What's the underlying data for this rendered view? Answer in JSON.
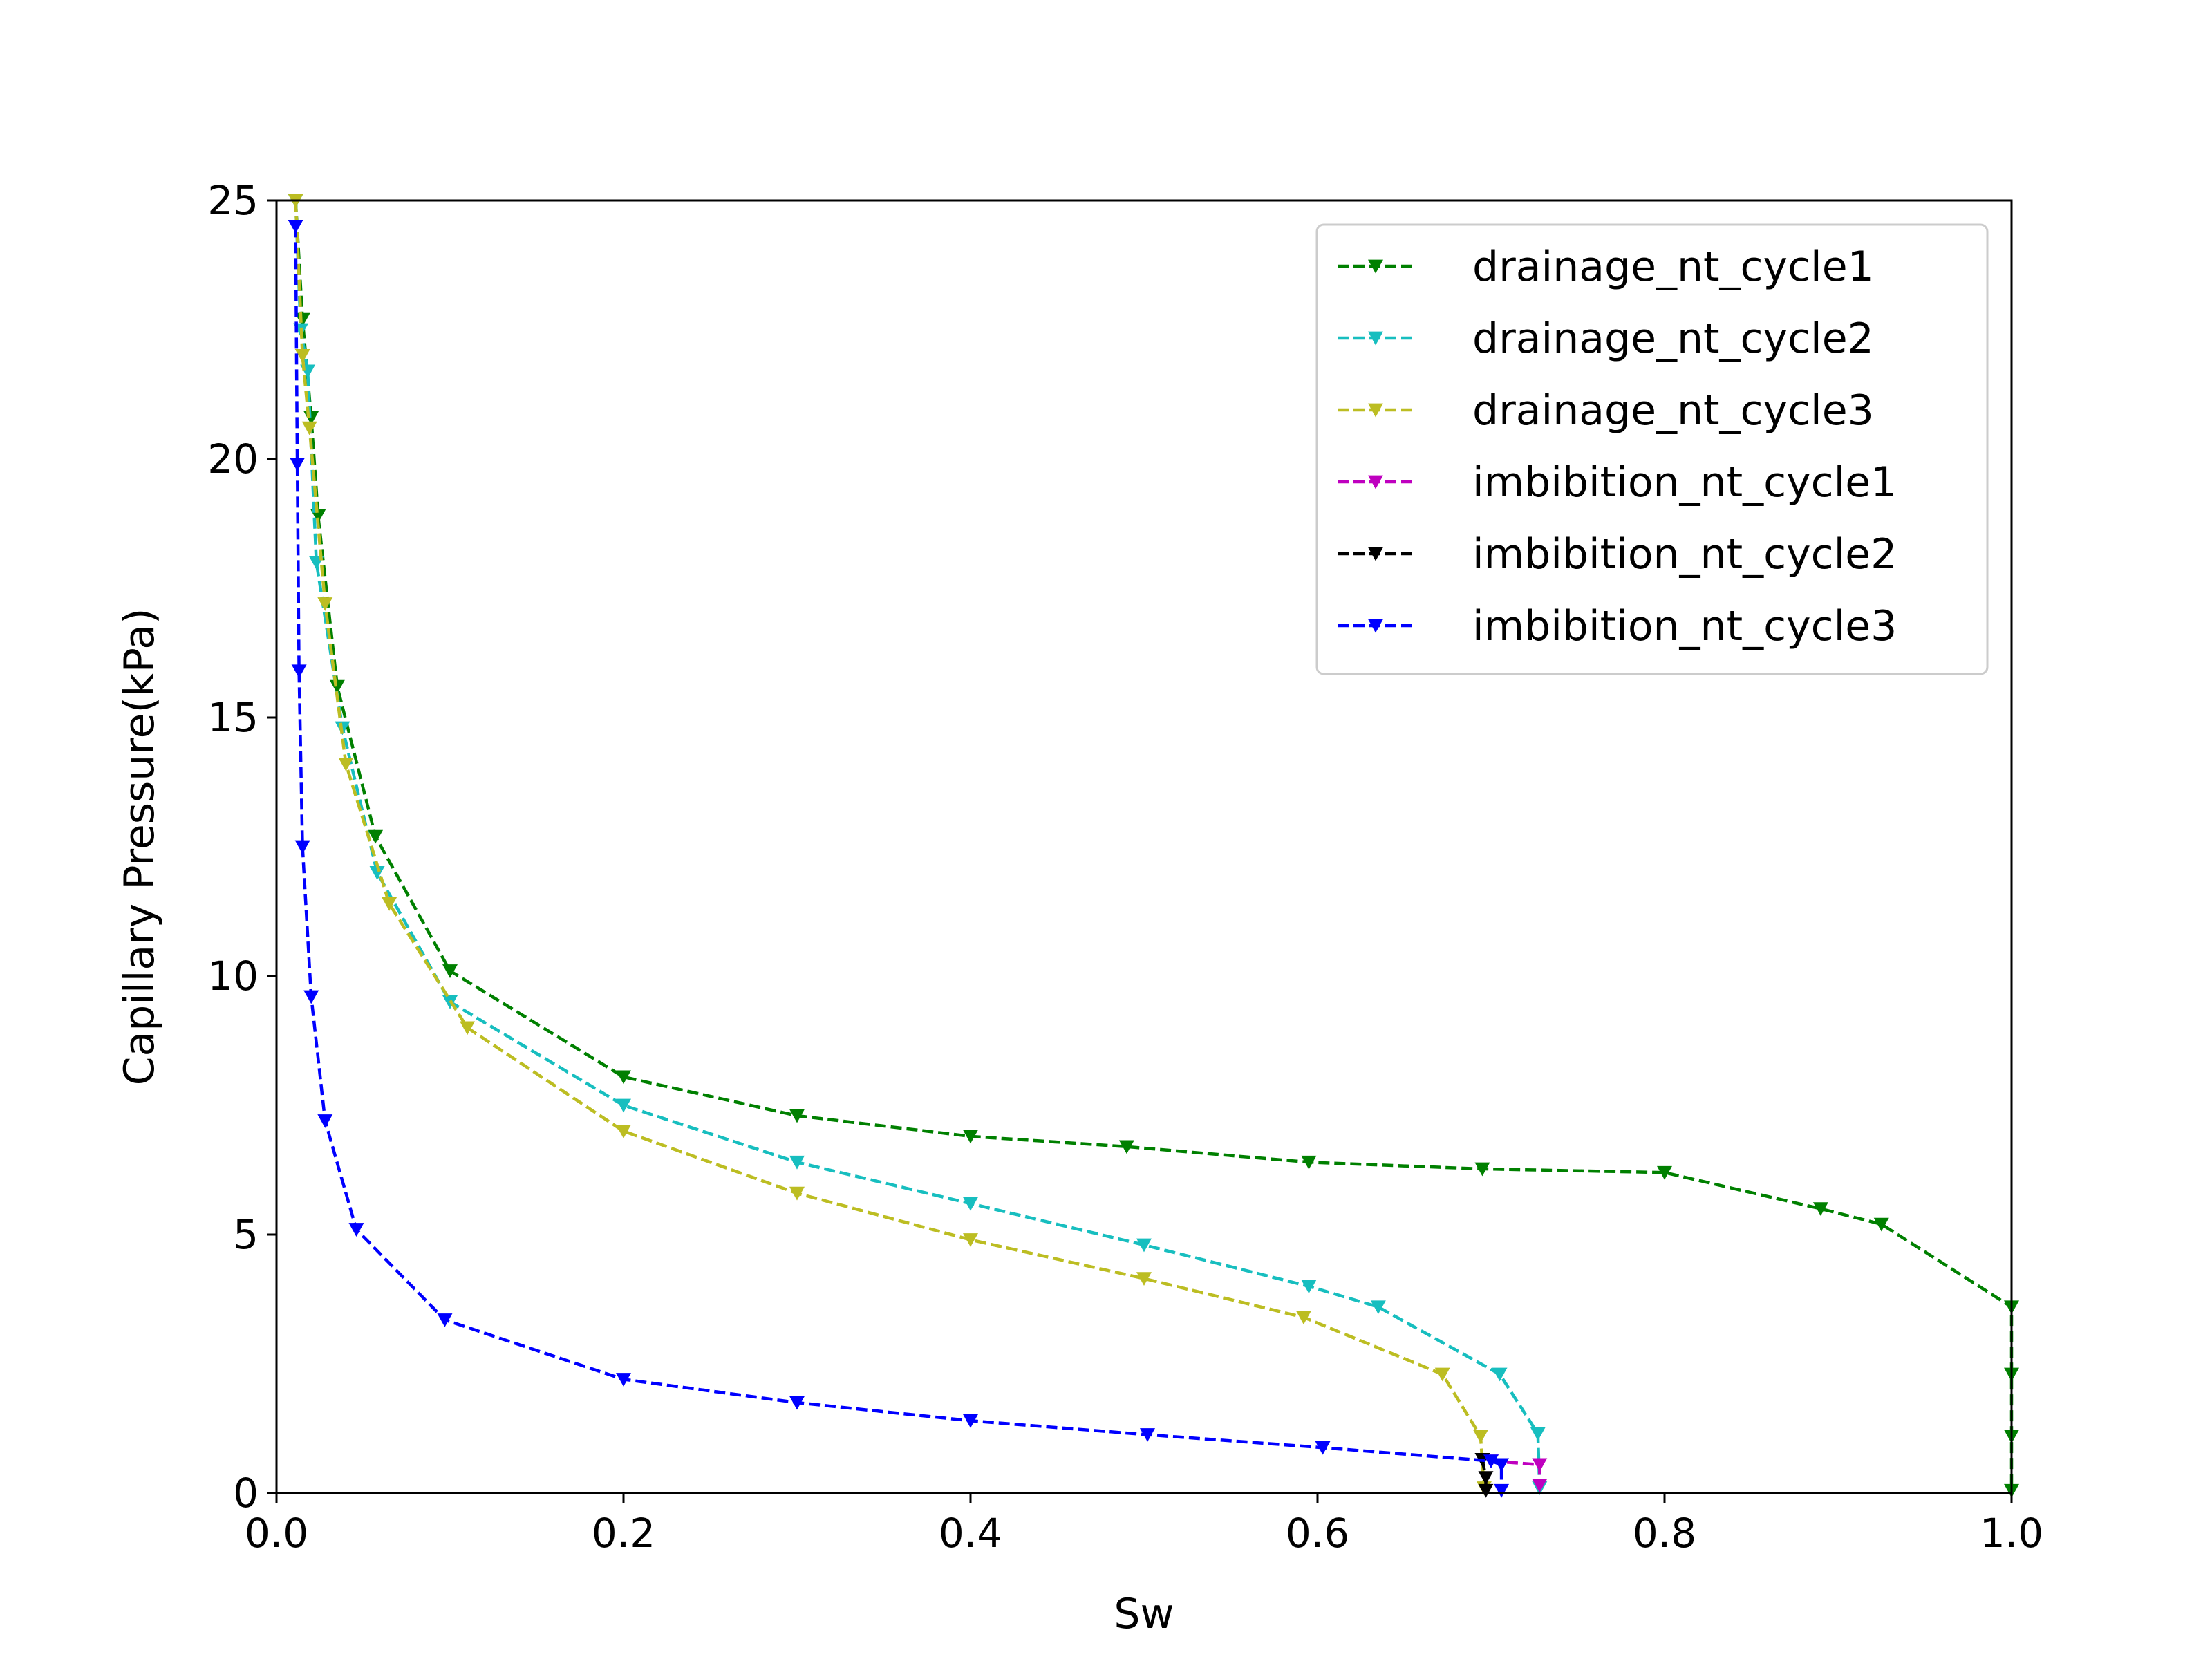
{
  "chart_data": {
    "type": "line",
    "xlabel": "Sw",
    "ylabel": "Capillary Pressure(kPa)",
    "xlim": [
      0.0,
      1.0
    ],
    "ylim": [
      0,
      25
    ],
    "xticks": [
      0.0,
      0.2,
      0.4,
      0.6,
      0.8,
      1.0
    ],
    "xtick_labels": [
      "0.0",
      "0.2",
      "0.4",
      "0.6",
      "0.8",
      "1.0"
    ],
    "yticks": [
      0,
      5,
      10,
      15,
      20,
      25
    ],
    "ytick_labels": [
      "0",
      "5",
      "10",
      "15",
      "20",
      "25"
    ],
    "grid": false,
    "legend_position": "top-right",
    "series": [
      {
        "name": "drainage_nt_cycle1",
        "color": "#008000",
        "marker": "triangle-down",
        "line_style": "dashed",
        "points": [
          [
            0.011,
            25.0
          ],
          [
            0.015,
            22.7
          ],
          [
            0.02,
            20.8
          ],
          [
            0.024,
            18.9
          ],
          [
            0.035,
            15.6
          ],
          [
            0.057,
            12.7
          ],
          [
            0.1,
            10.1
          ],
          [
            0.2,
            8.05
          ],
          [
            0.3,
            7.3
          ],
          [
            0.4,
            6.9
          ],
          [
            0.49,
            6.7
          ],
          [
            0.595,
            6.4
          ],
          [
            0.695,
            6.27
          ],
          [
            0.8,
            6.2
          ],
          [
            0.89,
            5.5
          ],
          [
            0.925,
            5.2
          ],
          [
            1.0,
            3.6
          ],
          [
            1.0,
            2.3
          ],
          [
            1.0,
            1.1
          ],
          [
            1.0,
            0.05
          ]
        ]
      },
      {
        "name": "drainage_nt_cycle2",
        "color": "#17BEBF",
        "marker": "triangle-down",
        "line_style": "dashed",
        "points": [
          [
            0.011,
            25.0
          ],
          [
            0.014,
            22.5
          ],
          [
            0.018,
            21.7
          ],
          [
            0.023,
            18.0
          ],
          [
            0.038,
            14.8
          ],
          [
            0.058,
            12.0
          ],
          [
            0.1,
            9.5
          ],
          [
            0.2,
            7.5
          ],
          [
            0.3,
            6.4
          ],
          [
            0.4,
            5.6
          ],
          [
            0.5,
            4.8
          ],
          [
            0.595,
            4.0
          ],
          [
            0.635,
            3.6
          ],
          [
            0.705,
            2.3
          ],
          [
            0.727,
            1.15
          ],
          [
            0.728,
            0.1
          ]
        ]
      },
      {
        "name": "drainage_nt_cycle3",
        "color": "#BCBD22",
        "marker": "triangle-down",
        "line_style": "dashed",
        "points": [
          [
            0.011,
            25.0
          ],
          [
            0.015,
            22.0
          ],
          [
            0.019,
            20.6
          ],
          [
            0.028,
            17.2
          ],
          [
            0.04,
            14.1
          ],
          [
            0.065,
            11.4
          ],
          [
            0.11,
            9.0
          ],
          [
            0.2,
            7.0
          ],
          [
            0.3,
            5.8
          ],
          [
            0.4,
            4.9
          ],
          [
            0.5,
            4.15
          ],
          [
            0.592,
            3.4
          ],
          [
            0.672,
            2.3
          ],
          [
            0.694,
            1.1
          ],
          [
            0.696,
            0.1
          ]
        ]
      },
      {
        "name": "imbibition_nt_cycle1",
        "color": "#BF00BF",
        "marker": "triangle-down",
        "line_style": "dashed",
        "points": [
          [
            0.7,
            0.62
          ],
          [
            0.728,
            0.55
          ],
          [
            0.728,
            0.15
          ]
        ]
      },
      {
        "name": "imbibition_nt_cycle2",
        "color": "#000000",
        "marker": "triangle-down",
        "line_style": "dashed",
        "points": [
          [
            0.695,
            0.65
          ],
          [
            0.697,
            0.3
          ],
          [
            0.697,
            0.05
          ]
        ]
      },
      {
        "name": "imbibition_nt_cycle3",
        "color": "#0000FF",
        "marker": "triangle-down",
        "line_style": "dashed",
        "points": [
          [
            0.011,
            24.5
          ],
          [
            0.012,
            19.9
          ],
          [
            0.013,
            15.9
          ],
          [
            0.015,
            12.5
          ],
          [
            0.02,
            9.6
          ],
          [
            0.028,
            7.2
          ],
          [
            0.046,
            5.1
          ],
          [
            0.097,
            3.35
          ],
          [
            0.2,
            2.2
          ],
          [
            0.3,
            1.75
          ],
          [
            0.4,
            1.4
          ],
          [
            0.502,
            1.13
          ],
          [
            0.603,
            0.88
          ],
          [
            0.7,
            0.62
          ],
          [
            0.706,
            0.55
          ],
          [
            0.706,
            0.05
          ]
        ]
      }
    ]
  }
}
